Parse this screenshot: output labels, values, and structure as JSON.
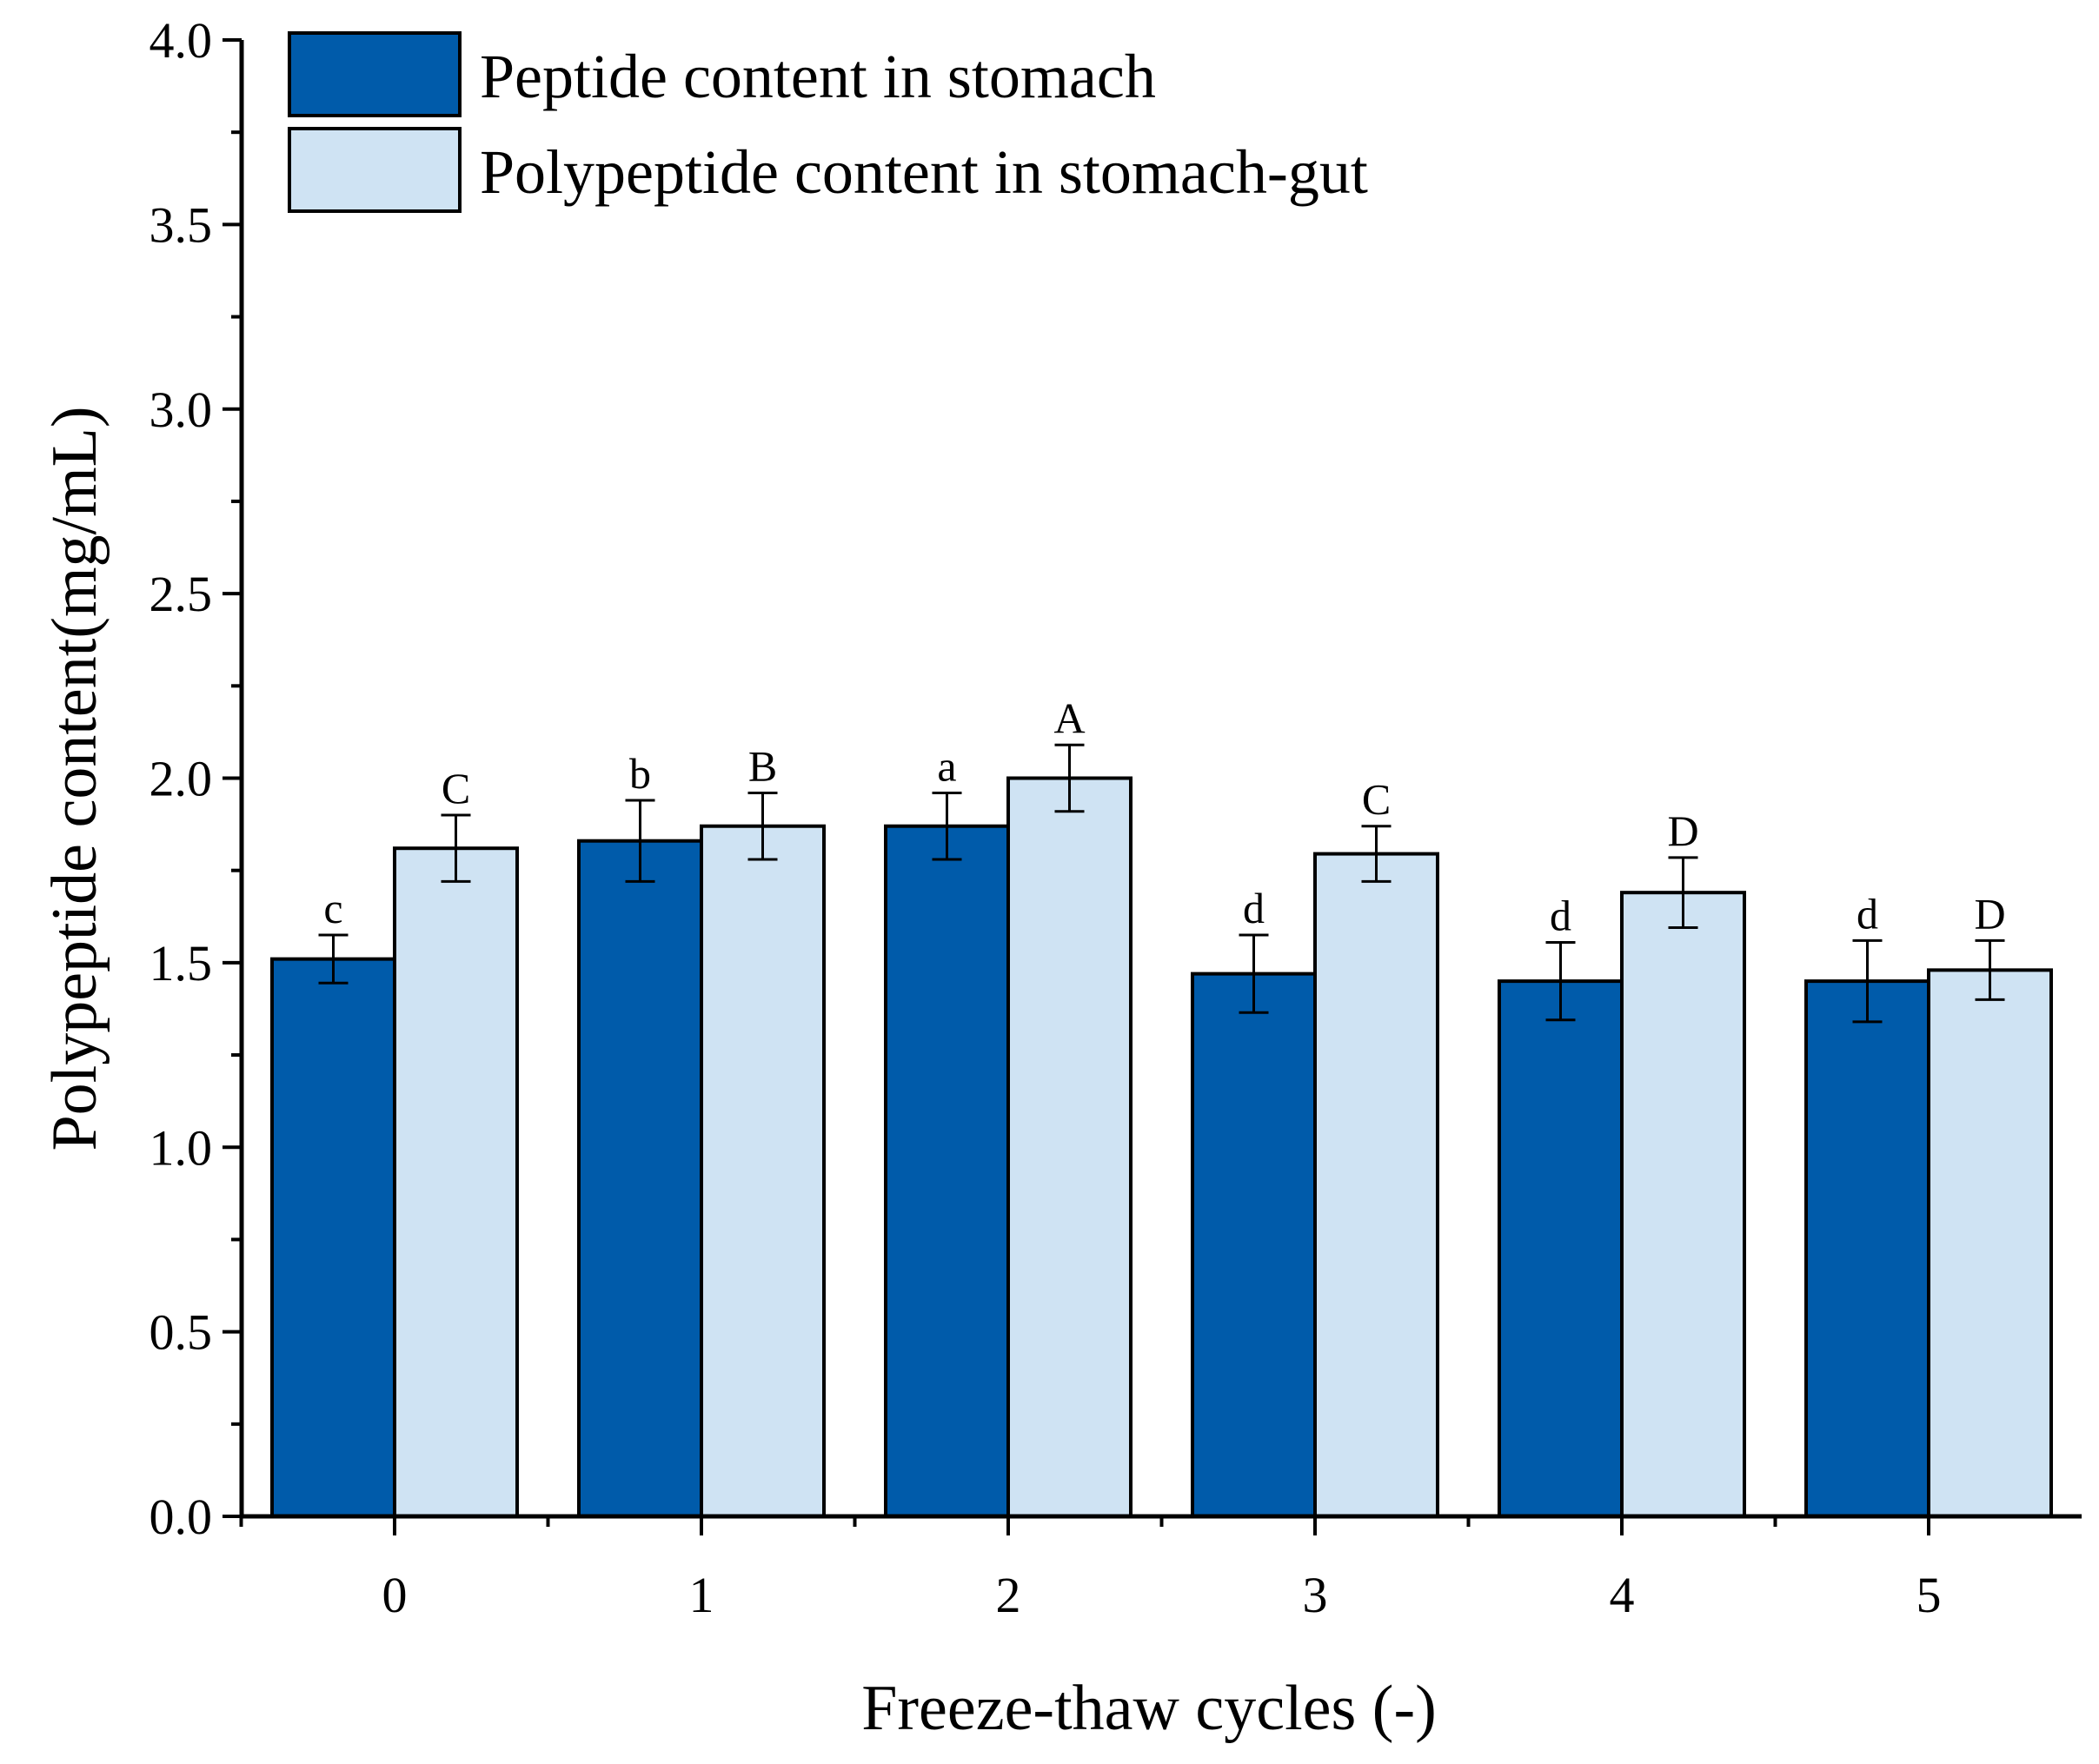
{
  "chart_data": {
    "type": "bar",
    "title": "",
    "xlabel": "Freeze-thaw cycles (-)",
    "ylabel": "Polypeptide content(mg/mL)",
    "ylim": [
      0,
      4.0
    ],
    "yticks": [
      "0.0",
      "0.5",
      "1.0",
      "1.5",
      "2.0",
      "2.5",
      "3.0",
      "3.5",
      "4.0"
    ],
    "categories": [
      "0",
      "1",
      "2",
      "3",
      "4",
      "5"
    ],
    "legend_position": "top-left",
    "series": [
      {
        "name": "Peptide content in stomach",
        "color": "#005BAA",
        "values": [
          1.51,
          1.83,
          1.87,
          1.47,
          1.45,
          1.45
        ],
        "errors": [
          0.065,
          0.11,
          0.09,
          0.105,
          0.105,
          0.11
        ],
        "labels": [
          "c",
          "b",
          "a",
          "d",
          "d",
          "d"
        ]
      },
      {
        "name": "Polypeptide content in stomach-gut",
        "color": "#CFE3F3",
        "values": [
          1.81,
          1.87,
          2.0,
          1.795,
          1.69,
          1.48
        ],
        "errors": [
          0.09,
          0.09,
          0.09,
          0.075,
          0.095,
          0.08
        ],
        "labels": [
          "C",
          "B",
          "A",
          "C",
          "D",
          "D"
        ]
      }
    ]
  }
}
